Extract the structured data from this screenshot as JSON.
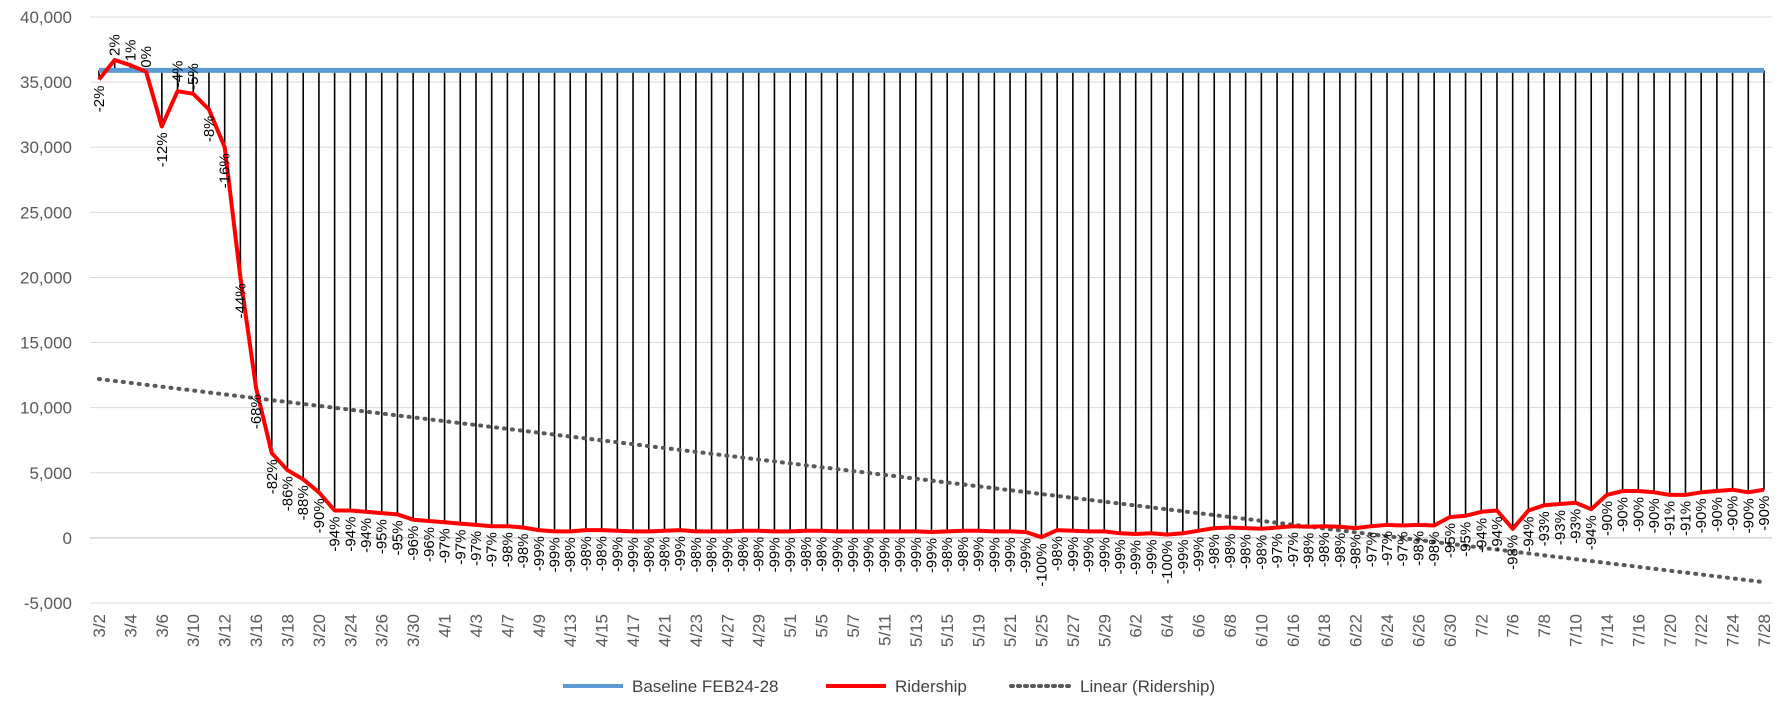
{
  "chart_data": {
    "type": "line",
    "title": "",
    "xlabel": "",
    "ylabel": "",
    "ylim": [
      -5000,
      40000
    ],
    "yticks": [
      -5000,
      0,
      5000,
      10000,
      15000,
      20000,
      25000,
      30000,
      35000,
      40000
    ],
    "ytick_labels": [
      "-5,000",
      "0",
      "5,000",
      "10,000",
      "15,000",
      "20,000",
      "25,000",
      "30,000",
      "35,000",
      "40,000"
    ],
    "grid": "horizontal",
    "legend_position": "bottom",
    "x": [
      "3/2",
      "3/3",
      "3/4",
      "3/5",
      "3/6",
      "3/9",
      "3/10",
      "3/11",
      "3/12",
      "3/13",
      "3/16",
      "3/17",
      "3/18",
      "3/19",
      "3/20",
      "3/23",
      "3/24",
      "3/25",
      "3/26",
      "3/27",
      "3/30",
      "3/31",
      "4/1",
      "4/2",
      "4/3",
      "4/6",
      "4/7",
      "4/8",
      "4/9",
      "4/10",
      "4/13",
      "4/14",
      "4/15",
      "4/16",
      "4/17",
      "4/20",
      "4/21",
      "4/22",
      "4/23",
      "4/24",
      "4/27",
      "4/28",
      "4/29",
      "4/30",
      "5/1",
      "5/4",
      "5/5",
      "5/6",
      "5/7",
      "5/8",
      "5/11",
      "5/12",
      "5/13",
      "5/14",
      "5/15",
      "5/18",
      "5/19",
      "5/20",
      "5/21",
      "5/22",
      "5/25",
      "5/26",
      "5/27",
      "5/28",
      "5/29",
      "6/1",
      "6/2",
      "6/3",
      "6/4",
      "6/5",
      "6/6",
      "6/7",
      "6/8",
      "6/9",
      "6/10",
      "6/15",
      "6/16",
      "6/17",
      "6/18",
      "6/19",
      "6/22",
      "6/23",
      "6/24",
      "6/25",
      "6/26",
      "6/29",
      "6/30",
      "7/1",
      "7/2",
      "7/3",
      "7/6",
      "7/7",
      "7/8",
      "7/9",
      "7/10",
      "7/13",
      "7/14",
      "7/15",
      "7/16",
      "7/17",
      "7/20",
      "7/21",
      "7/22",
      "7/23",
      "7/24",
      "7/27",
      "7/28"
    ],
    "x_tick_labels_shown": [
      "3/2",
      "3/4",
      "3/6",
      "3/10",
      "3/12",
      "3/16",
      "3/18",
      "3/20",
      "3/24",
      "3/26",
      "3/30",
      "4/1",
      "4/3",
      "4/7",
      "4/9",
      "4/13",
      "4/15",
      "4/17",
      "4/21",
      "4/23",
      "4/27",
      "4/29",
      "5/1",
      "5/5",
      "5/7",
      "5/11",
      "5/13",
      "5/15",
      "5/19",
      "5/21",
      "5/25",
      "5/27",
      "5/29",
      "6/2",
      "6/4",
      "6/6",
      "6/8",
      "6/10",
      "6/16",
      "6/18",
      "6/22",
      "6/24",
      "6/26",
      "6/30",
      "7/2",
      "7/6",
      "7/8",
      "7/10",
      "7/14",
      "7/16",
      "7/20",
      "7/22",
      "7/24",
      "7/28"
    ],
    "series": [
      {
        "name": "Baseline FEB24-28",
        "color": "#5B9BD5",
        "constant": 35900
      },
      {
        "name": "Ridership",
        "color": "#FF0000",
        "values": [
          35200,
          36700,
          36300,
          35800,
          31600,
          34300,
          34100,
          32900,
          30000,
          20000,
          11500,
          6500,
          5200,
          4500,
          3500,
          2100,
          2100,
          2000,
          1900,
          1800,
          1400,
          1300,
          1200,
          1100,
          1000,
          900,
          900,
          800,
          600,
          500,
          500,
          600,
          600,
          550,
          500,
          500,
          550,
          600,
          500,
          500,
          500,
          550,
          550,
          500,
          500,
          550,
          550,
          500,
          500,
          500,
          500,
          500,
          500,
          450,
          500,
          550,
          550,
          500,
          500,
          450,
          50,
          600,
          550,
          500,
          500,
          350,
          300,
          350,
          250,
          350,
          550,
          750,
          800,
          750,
          700,
          800,
          900,
          850,
          900,
          850,
          750,
          900,
          1000,
          950,
          1000,
          950,
          1600,
          1700,
          2000,
          2100,
          700,
          2100,
          2500,
          2600,
          2700,
          2200,
          3300,
          3600,
          3600,
          3500,
          3300,
          3300,
          3500,
          3600,
          3700,
          3500,
          3700
        ]
      },
      {
        "name": "Linear (Ridership)",
        "color": "#595959",
        "style": "dotted",
        "start": 12200,
        "end": -3400
      }
    ],
    "pct_labels": [
      "-2%",
      "2%",
      "1%",
      "0%",
      "-12%",
      "-4%",
      "-5%",
      "-8%",
      "-16%",
      "-44%",
      "-68%",
      "-82%",
      "-86%",
      "-88%",
      "-90%",
      "-94%",
      "-94%",
      "-94%",
      "-95%",
      "-95%",
      "-96%",
      "-96%",
      "-97%",
      "-97%",
      "-97%",
      "-97%",
      "-98%",
      "-98%",
      "-99%",
      "-99%",
      "-98%",
      "-98%",
      "-98%",
      "-99%",
      "-99%",
      "-98%",
      "-98%",
      "-99%",
      "-98%",
      "-98%",
      "-99%",
      "-98%",
      "-98%",
      "-99%",
      "-99%",
      "-98%",
      "-98%",
      "-99%",
      "-99%",
      "-99%",
      "-99%",
      "-99%",
      "-99%",
      "-99%",
      "-98%",
      "-98%",
      "-99%",
      "-99%",
      "-99%",
      "-99%",
      "-100%",
      "-98%",
      "-99%",
      "-99%",
      "-99%",
      "-99%",
      "-99%",
      "-99%",
      "-100%",
      "-99%",
      "-99%",
      "-98%",
      "-98%",
      "-98%",
      "-98%",
      "-97%",
      "-97%",
      "-98%",
      "-98%",
      "-98%",
      "-98%",
      "-97%",
      "-97%",
      "-97%",
      "-98%",
      "-98%",
      "-95%",
      "-95%",
      "-94%",
      "-94%",
      "-98%",
      "-94%",
      "-93%",
      "-93%",
      "-93%",
      "-94%",
      "-90%",
      "-90%",
      "-90%",
      "-90%",
      "-91%",
      "-91%",
      "-90%",
      "-90%",
      "-90%",
      "-90%",
      "-90%"
    ]
  }
}
